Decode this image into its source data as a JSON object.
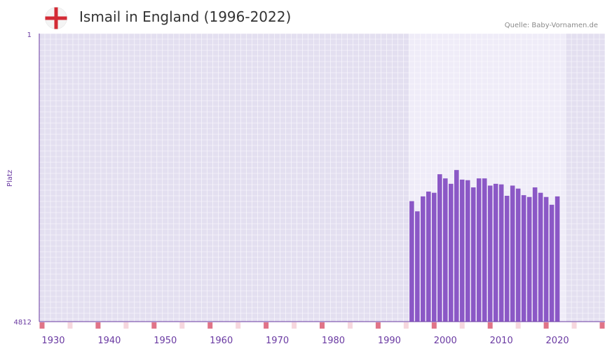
{
  "header": {
    "title": "Ismail in England (1996-2022)",
    "source": "Quelle: Baby-Vornamen.de",
    "flag_icon": "england-flag-icon"
  },
  "colors": {
    "plot_bg": "#e3dff0",
    "highlight_bg": "#efecf8",
    "grid": "#ffffff",
    "bar": "#8b58c6",
    "axis": "#6a3aa2",
    "tick_text": "#6a3aa2",
    "decade_marker": "#e07488",
    "fiveyear_marker": "#f6d7de",
    "flag_red": "#d32a35"
  },
  "chart_data": {
    "type": "bar",
    "title": "Ismail in England (1996-2022)",
    "xlabel": "",
    "ylabel": "Platz",
    "x_range": [
      1928,
      2028
    ],
    "y_top_label": "1",
    "y_bottom_label": "4812",
    "y_axis_reversed": true,
    "ylim": [
      1,
      4812
    ],
    "x_ticks": [
      1930,
      1940,
      1950,
      1960,
      1970,
      1980,
      1990,
      2000,
      2010,
      2020
    ],
    "highlight_range": [
      1994,
      2021
    ],
    "categories": [
      1994,
      1995,
      1996,
      1997,
      1998,
      1999,
      2000,
      2001,
      2002,
      2003,
      2004,
      2005,
      2006,
      2007,
      2008,
      2009,
      2010,
      2011,
      2012,
      2013,
      2014,
      2015,
      2016,
      2017,
      2018,
      2019,
      2020
    ],
    "values": [
      2800,
      2970,
      2720,
      2640,
      2660,
      2350,
      2420,
      2510,
      2280,
      2440,
      2450,
      2570,
      2420,
      2420,
      2540,
      2510,
      2520,
      2710,
      2540,
      2590,
      2700,
      2730,
      2570,
      2660,
      2730,
      2860,
      2720
    ]
  }
}
